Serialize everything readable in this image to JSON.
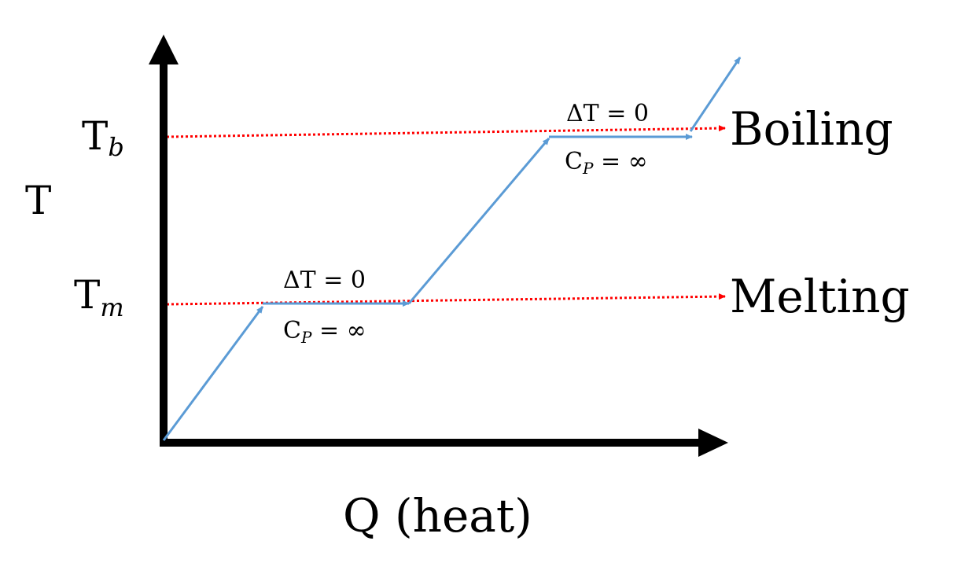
{
  "axes": {
    "y_label": "T",
    "x_label": "Q (heat)"
  },
  "temperatures": {
    "boiling": {
      "base": "T",
      "subscript": "b",
      "name": "Boiling"
    },
    "melting": {
      "base": "T",
      "subscript": "m",
      "name": "Melting"
    }
  },
  "annotations": {
    "melting": {
      "delta_t": "ΔT = 0",
      "cp_base": "C",
      "cp_sub": "P",
      "cp_rest": " = ∞"
    },
    "boiling": {
      "delta_t": "ΔT = 0",
      "cp_base": "C",
      "cp_sub": "P",
      "cp_rest": " = ∞"
    }
  },
  "colors": {
    "axes": "#000000",
    "curve": "#5b9bd5",
    "reference": "#ff0000"
  }
}
